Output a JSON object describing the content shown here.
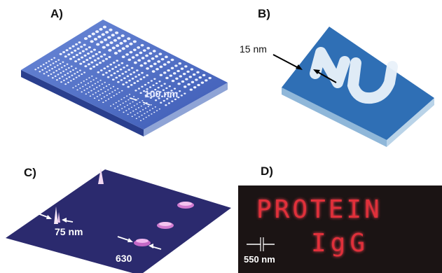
{
  "panels": {
    "a": {
      "label": "A)",
      "scale": "100 nm"
    },
    "b": {
      "label": "B)",
      "scale": "15 nm"
    },
    "c": {
      "label": "C)",
      "scale": "75 nm",
      "count": "630"
    },
    "d": {
      "label": "D)",
      "line1": "PROTEIN",
      "line2": "IgG",
      "scale": "550 nm"
    }
  },
  "colors": {
    "blue_surface": "#4a6bc4",
    "blue_dark": "#1f3a8c",
    "navy_surface": "#2b2a6e",
    "dark_bg": "#1b1414",
    "red_text": "#e0303a"
  }
}
